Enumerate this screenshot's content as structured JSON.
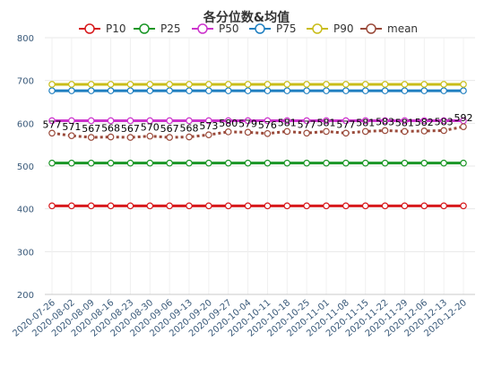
{
  "chart_data": {
    "type": "line",
    "title": "各分位数&均值",
    "xlabel": "",
    "ylabel": "",
    "ylim": [
      200,
      800
    ],
    "yticks": [
      200,
      300,
      400,
      500,
      600,
      700,
      800
    ],
    "grid": true,
    "legend_position": "top",
    "x": [
      "2020-07-26",
      "2020-08-02",
      "2020-08-09",
      "2020-08-16",
      "2020-08-23",
      "2020-08-30",
      "2020-09-06",
      "2020-09-13",
      "2020-09-20",
      "2020-09-27",
      "2020-10-04",
      "2020-10-11",
      "2020-10-18",
      "2020-10-25",
      "2020-11-01",
      "2020-11-08",
      "2020-11-15",
      "2020-11-22",
      "2020-11-29",
      "2020-12-06",
      "2020-12-13",
      "2020-12-20"
    ],
    "series": [
      {
        "name": "P10",
        "color": "#d7191c",
        "dashed": false,
        "labels": false,
        "values": [
          407,
          407,
          407,
          407,
          407,
          407,
          407,
          407,
          407,
          407,
          407,
          407,
          407,
          407,
          407,
          407,
          407,
          407,
          407,
          407,
          407,
          407
        ]
      },
      {
        "name": "P25",
        "color": "#1a9626",
        "dashed": false,
        "labels": false,
        "values": [
          507,
          507,
          507,
          507,
          507,
          507,
          507,
          507,
          507,
          507,
          507,
          507,
          507,
          507,
          507,
          507,
          507,
          507,
          507,
          507,
          507,
          507
        ]
      },
      {
        "name": "P50",
        "color": "#cc33cc",
        "dashed": false,
        "labels": false,
        "values": [
          606,
          606,
          606,
          606,
          606,
          606,
          606,
          606,
          606,
          606,
          606,
          606,
          606,
          606,
          606,
          606,
          606,
          606,
          606,
          606,
          606,
          606
        ]
      },
      {
        "name": "P75",
        "color": "#1f7fc0",
        "dashed": false,
        "labels": false,
        "values": [
          676,
          676,
          676,
          676,
          676,
          676,
          676,
          676,
          676,
          676,
          676,
          676,
          676,
          676,
          676,
          676,
          676,
          676,
          676,
          676,
          676,
          676
        ]
      },
      {
        "name": "P90",
        "color": "#c9bd1a",
        "dashed": false,
        "labels": false,
        "values": [
          691,
          691,
          691,
          691,
          691,
          691,
          691,
          691,
          691,
          691,
          691,
          691,
          691,
          691,
          691,
          691,
          691,
          691,
          691,
          691,
          691,
          691
        ]
      },
      {
        "name": "mean",
        "color": "#9a4a3a",
        "dashed": true,
        "labels": true,
        "values": [
          577,
          571,
          567,
          568,
          567,
          570,
          567,
          568,
          573,
          580,
          579,
          576,
          581,
          577,
          581,
          577,
          581,
          583,
          581,
          582,
          583,
          592
        ]
      }
    ]
  }
}
